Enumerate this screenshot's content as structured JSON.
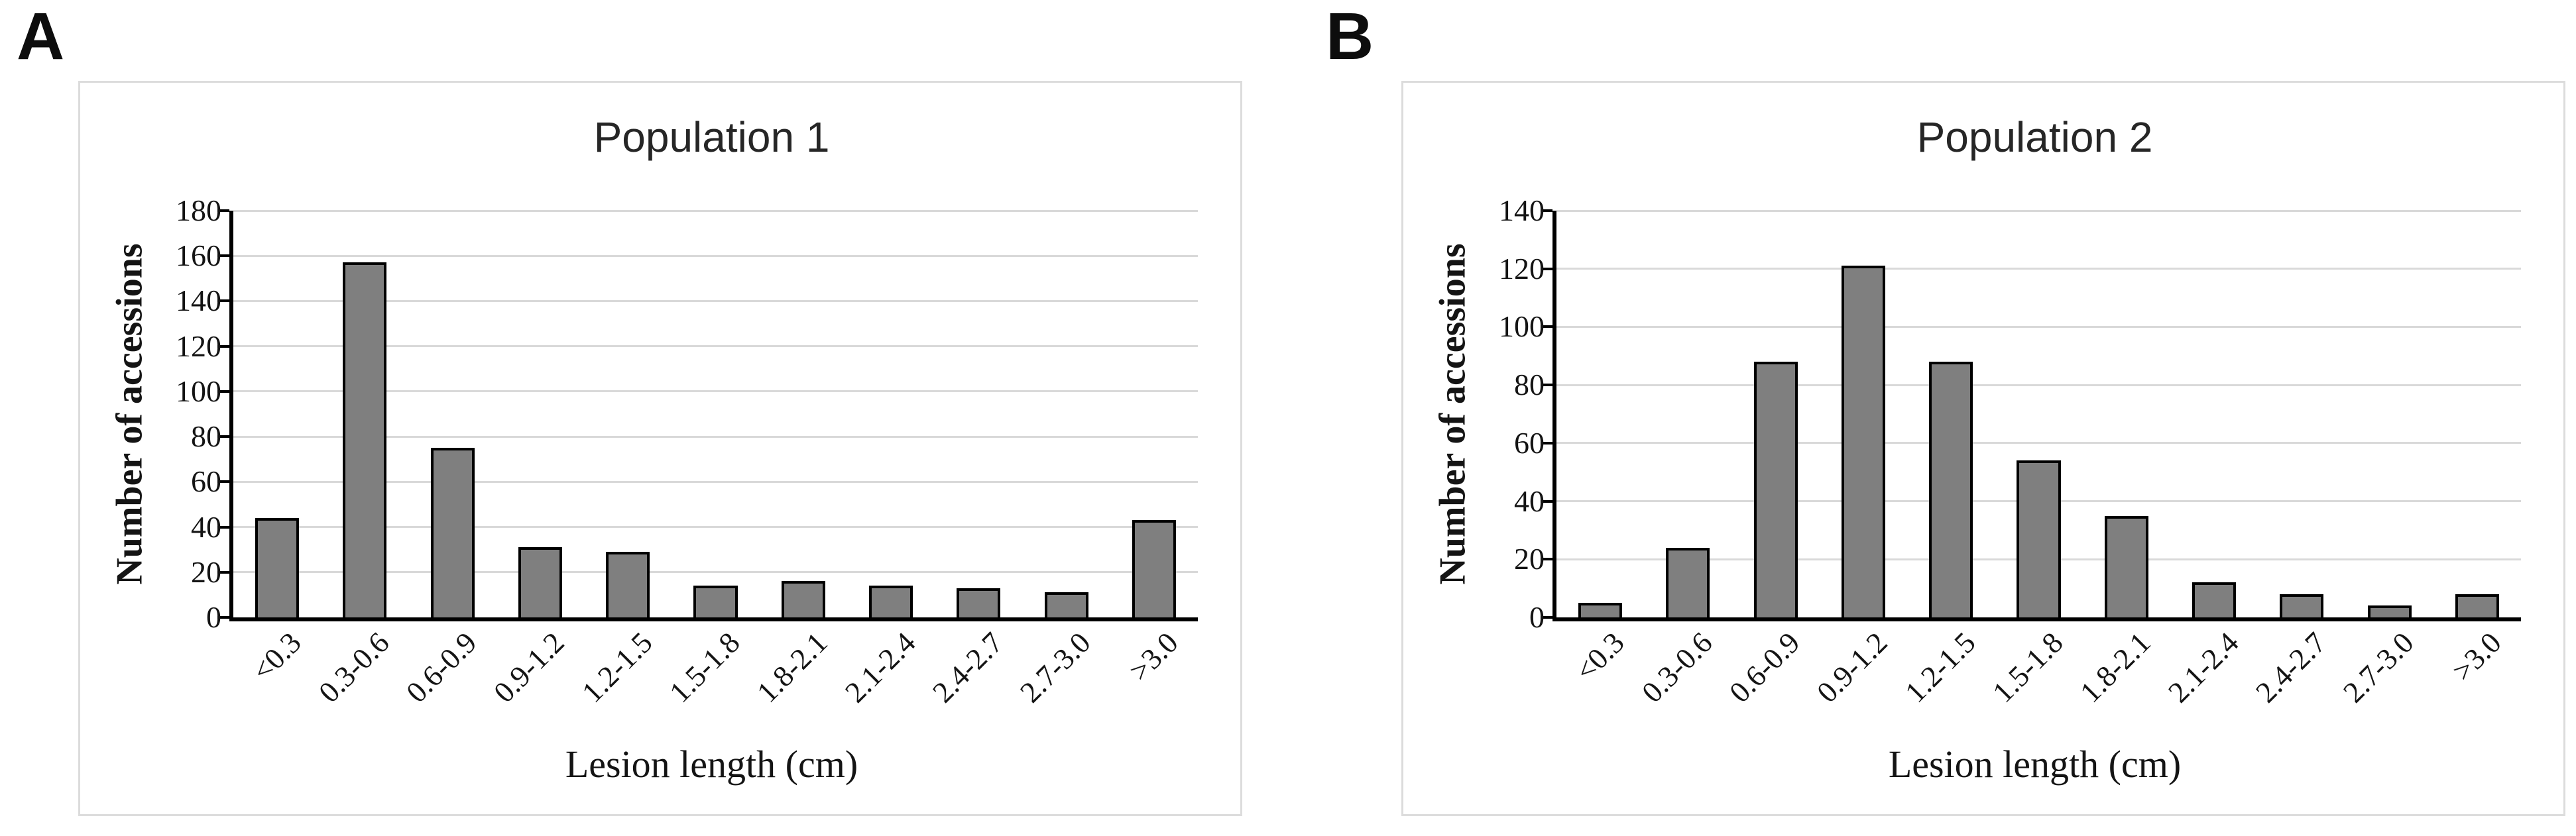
{
  "page": {
    "panel_labels": [
      "A",
      "B"
    ]
  },
  "colors": {
    "bar_fill": "#7f7f7f",
    "bar_border": "#000000",
    "gridline": "#d9d9d9",
    "axis": "#000000",
    "panel_border": "#dcdcdc",
    "title_text": "#262626",
    "axis_text": "#141414"
  },
  "chart_data": [
    {
      "type": "bar",
      "title": "Population 1",
      "xlabel": "Lesion length (cm)",
      "ylabel": "Number of accessions",
      "categories": [
        "<0.3",
        "0.3-0.6",
        "0.6-0.9",
        "0.9-1.2",
        "1.2-1.5",
        "1.5-1.8",
        "1.8-2.1",
        "2.1-2.4",
        "2.4-2.7",
        "2.7-3.0",
        ">3.0"
      ],
      "values": [
        44,
        157,
        75,
        31,
        29,
        14,
        16,
        14,
        13,
        11,
        43
      ],
      "ylim": [
        0,
        180
      ],
      "ystep": 20,
      "grid": true,
      "legend": "none",
      "x_tick_rotation_deg": -45
    },
    {
      "type": "bar",
      "title": "Population 2",
      "xlabel": "Lesion length (cm)",
      "ylabel": "Number of accessions",
      "categories": [
        "<0.3",
        "0.3-0.6",
        "0.6-0.9",
        "0.9-1.2",
        "1.2-1.5",
        "1.5-1.8",
        "1.8-2.1",
        "2.1-2.4",
        "2.4-2.7",
        "2.7-3.0",
        ">3.0"
      ],
      "values": [
        5,
        24,
        88,
        121,
        88,
        54,
        35,
        12,
        8,
        4,
        8
      ],
      "ylim": [
        0,
        140
      ],
      "ystep": 20,
      "grid": true,
      "legend": "none",
      "x_tick_rotation_deg": -45
    }
  ]
}
